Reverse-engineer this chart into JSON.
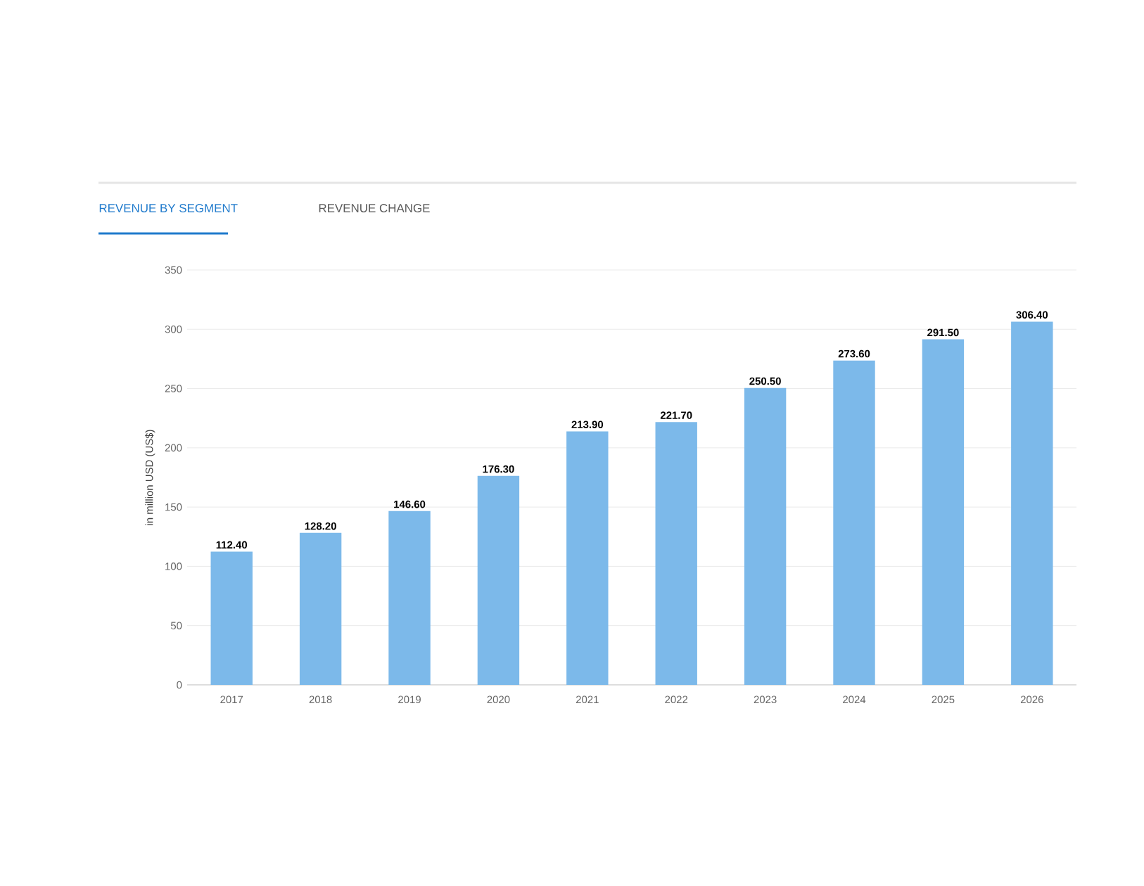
{
  "chart_data": {
    "type": "bar",
    "title": "REVENUE BY SEGMENT",
    "subtitle": "REVENUE CHANGE",
    "ylabel": "in million USD (US$)",
    "categories": [
      "2017",
      "2018",
      "2019",
      "2020",
      "2021",
      "2022",
      "2023",
      "2024",
      "2025",
      "2026"
    ],
    "values": [
      112.4,
      128.2,
      146.6,
      176.3,
      213.9,
      221.7,
      250.5,
      273.6,
      291.5,
      306.4
    ],
    "value_labels": [
      "112.40",
      "128.20",
      "146.60",
      "176.30",
      "213.90",
      "221.70",
      "250.50",
      "273.60",
      "291.50",
      "306.40"
    ],
    "color": "#7cb9ea",
    "ylim": [
      0,
      350
    ],
    "yticks": [
      0,
      50,
      100,
      150,
      200,
      250,
      300,
      350
    ],
    "grid": "y"
  }
}
